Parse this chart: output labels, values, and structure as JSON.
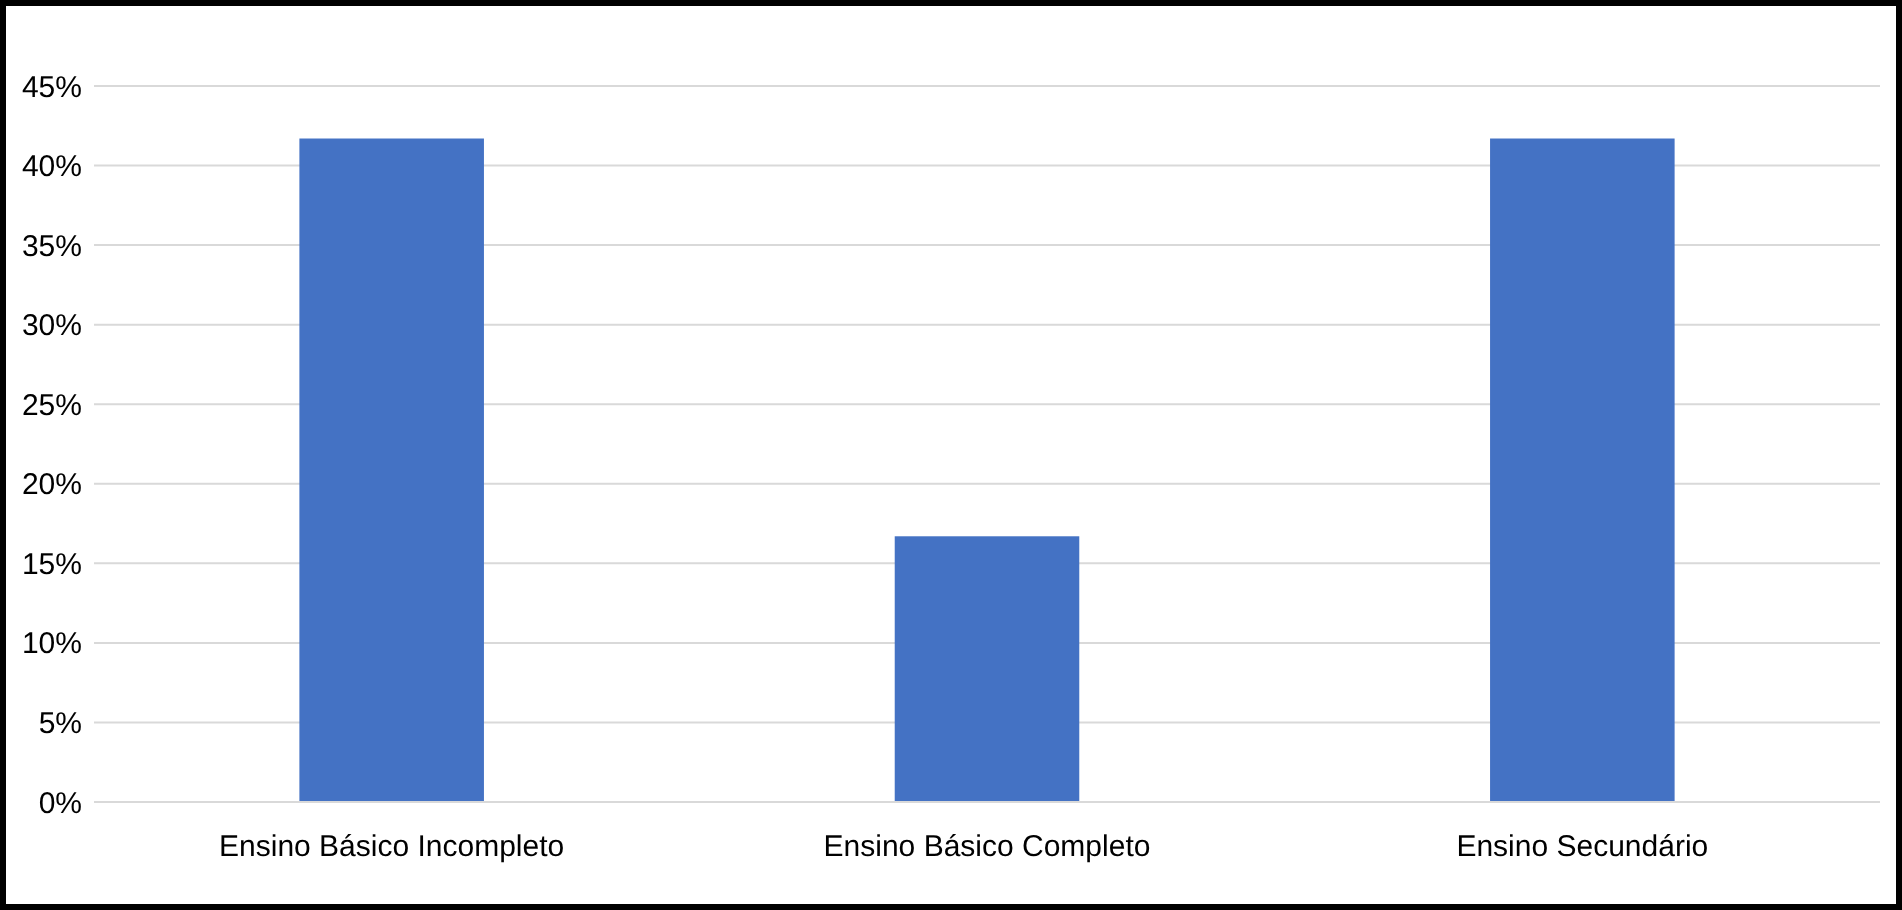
{
  "chart_data": {
    "type": "bar",
    "categories": [
      "Ensino Básico Incompleto",
      "Ensino Básico Completo",
      "Ensino Secundário"
    ],
    "values": [
      41.7,
      16.7,
      41.7
    ],
    "color": "#4472c4",
    "ylim": [
      0,
      45
    ],
    "yticks": [
      {
        "value": 0,
        "label": "0%"
      },
      {
        "value": 5,
        "label": "5%"
      },
      {
        "value": 10,
        "label": "10%"
      },
      {
        "value": 15,
        "label": "15%"
      },
      {
        "value": 20,
        "label": "20%"
      },
      {
        "value": 25,
        "label": "25%"
      },
      {
        "value": 30,
        "label": "30%"
      },
      {
        "value": 35,
        "label": "35%"
      },
      {
        "value": 40,
        "label": "40%"
      },
      {
        "value": 45,
        "label": "45%"
      }
    ],
    "grid": "y"
  }
}
